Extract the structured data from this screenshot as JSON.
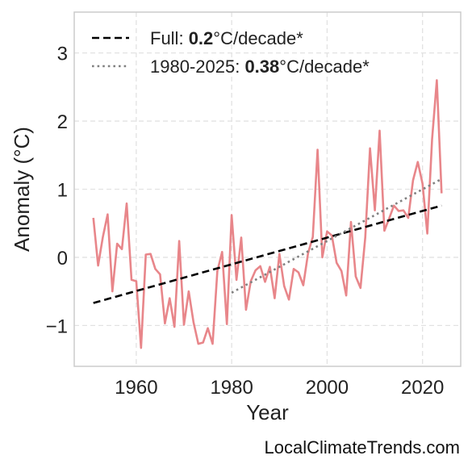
{
  "chart_data": {
    "type": "line",
    "xlabel": "Year",
    "ylabel": "Anomaly (°C)",
    "xlim": [
      1947,
      2028
    ],
    "ylim": [
      -1.6,
      3.6
    ],
    "x_ticks": [
      {
        "value": 1960,
        "label": "1960"
      },
      {
        "value": 1980,
        "label": "1980"
      },
      {
        "value": 2000,
        "label": "2000"
      },
      {
        "value": 2020,
        "label": "2020"
      }
    ],
    "y_ticks": [
      {
        "value": -1,
        "label": "−1"
      },
      {
        "value": 0,
        "label": "0"
      },
      {
        "value": 1,
        "label": "1"
      },
      {
        "value": 2,
        "label": "2"
      },
      {
        "value": 3,
        "label": "3"
      }
    ],
    "grid": true,
    "legend_position": "top-left",
    "series": [
      {
        "color": "#e8868a",
        "style": "solid",
        "x": [
          1951,
          1952,
          1953,
          1954,
          1955,
          1956,
          1957,
          1958,
          1959,
          1960,
          1961,
          1962,
          1963,
          1964,
          1965,
          1966,
          1967,
          1968,
          1969,
          1970,
          1971,
          1972,
          1973,
          1974,
          1975,
          1976,
          1977,
          1978,
          1979,
          1980,
          1981,
          1982,
          1983,
          1984,
          1985,
          1986,
          1987,
          1988,
          1989,
          1990,
          1991,
          1992,
          1993,
          1994,
          1995,
          1996,
          1997,
          1998,
          1999,
          2000,
          2001,
          2002,
          2003,
          2004,
          2005,
          2006,
          2007,
          2008,
          2009,
          2010,
          2011,
          2012,
          2013,
          2014,
          2015,
          2016,
          2017,
          2018,
          2019,
          2020,
          2021,
          2022,
          2023,
          2024
        ],
        "y": [
          0.58,
          -0.12,
          0.3,
          0.63,
          -0.5,
          0.2,
          0.12,
          0.79,
          -0.33,
          -0.35,
          -1.33,
          0.04,
          0.05,
          -0.17,
          -0.25,
          -0.97,
          -0.6,
          -1.02,
          0.24,
          -0.99,
          -0.5,
          -0.95,
          -1.27,
          -1.25,
          -1.04,
          -1.27,
          -0.2,
          0.08,
          -0.98,
          0.62,
          -0.33,
          0.29,
          -0.77,
          -0.35,
          -0.19,
          -0.13,
          -0.36,
          -0.14,
          -0.6,
          0.05,
          -0.42,
          -0.62,
          -0.17,
          -0.22,
          -0.41,
          0.06,
          0.3,
          1.58,
          0.0,
          0.38,
          0.32,
          -0.08,
          -0.2,
          -0.56,
          0.52,
          -0.28,
          -0.45,
          0.29,
          1.6,
          0.69,
          1.86,
          0.39,
          0.57,
          0.76,
          0.68,
          0.69,
          0.58,
          1.13,
          1.4,
          1.08,
          0.35,
          1.73,
          2.6,
          0.94
        ]
      },
      {
        "name_prefix": "Full: ",
        "name_value": "0.2",
        "name_suffix": "°C/decade*",
        "color": "#000000",
        "style": "dashed",
        "x": [
          1951,
          2024
        ],
        "y": [
          -0.67,
          0.76
        ]
      },
      {
        "name_prefix": "1980-2025: ",
        "name_value": "0.38",
        "name_suffix": "°C/decade*",
        "color": "#808080",
        "style": "dotted",
        "x": [
          1980,
          2024
        ],
        "y": [
          -0.52,
          1.15
        ]
      }
    ]
  },
  "source_text": "LocalClimateTrends.com"
}
